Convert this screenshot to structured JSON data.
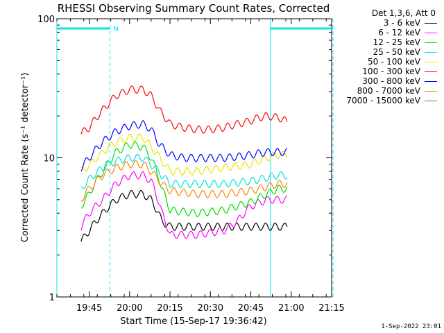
{
  "chart_data": {
    "type": "line",
    "title": "RHESSI Observing Summary Count Rates, Corrected",
    "xlabel": "Start Time (15-Sep-17 19:36:42)",
    "ylabel": "Corrected Count Rate (s⁻¹ detector⁻¹)",
    "y_scale": "log",
    "ylim": [
      1,
      100
    ],
    "y_ticks": [
      "1",
      "10",
      "100"
    ],
    "x_range_minutes": [
      -12,
      90
    ],
    "x_ticks": [
      {
        "label": "19:45",
        "t": 0
      },
      {
        "label": "20:00",
        "t": 15
      },
      {
        "label": "20:15",
        "t": 30
      },
      {
        "label": "20:30",
        "t": 45
      },
      {
        "label": "20:45",
        "t": 60
      },
      {
        "label": "21:00",
        "t": 75
      },
      {
        "label": "21:15",
        "t": 90
      }
    ],
    "legend_title": "Det 1,3,6, Att 0",
    "legend_placement": "right, outside plot",
    "series": [
      {
        "name": "3 - 6 keV",
        "color": "#000000",
        "x": [
          -3,
          0,
          5,
          10,
          15,
          20,
          23,
          27,
          30,
          40,
          50,
          60,
          66,
          70,
          72,
          73.5
        ],
        "y": [
          2.5,
          3.0,
          4.0,
          5.0,
          5.5,
          5.5,
          5.0,
          3.5,
          3.2,
          3.2,
          3.2,
          3.2,
          3.2,
          3.2,
          3.2,
          3.2
        ]
      },
      {
        "name": "6 - 12 keV",
        "color": "#ff00ff",
        "x": [
          -3,
          0,
          5,
          10,
          15,
          20,
          23,
          27,
          30,
          40,
          50,
          55,
          60,
          66,
          70,
          72,
          73.5
        ],
        "y": [
          3.2,
          4.0,
          5.0,
          6.5,
          7.5,
          7.5,
          6.8,
          4.0,
          2.8,
          2.8,
          3.0,
          3.5,
          4.5,
          5.0,
          5.0,
          5.0,
          5.0
        ]
      },
      {
        "name": "12 - 25 keV",
        "color": "#00dd00",
        "x": [
          -3,
          0,
          5,
          10,
          15,
          20,
          23,
          27,
          30,
          40,
          50,
          60,
          66,
          70,
          72,
          73.5
        ],
        "y": [
          4.5,
          5.5,
          8.0,
          11.0,
          12.5,
          12.0,
          10.0,
          6.0,
          4.2,
          4.0,
          4.2,
          4.8,
          5.5,
          6.0,
          6.0,
          6.0
        ]
      },
      {
        "name": "25 - 50 keV",
        "color": "#00e0e0",
        "x": [
          -3,
          0,
          5,
          10,
          15,
          20,
          23,
          27,
          30,
          40,
          50,
          60,
          66,
          70,
          72,
          73.5
        ],
        "y": [
          6.0,
          7.0,
          8.5,
          9.5,
          10.0,
          10.0,
          9.0,
          7.5,
          6.5,
          6.5,
          6.5,
          6.8,
          7.2,
          7.5,
          7.5,
          7.5
        ]
      },
      {
        "name": "50 - 100 keV",
        "color": "#e6e600",
        "x": [
          -3,
          0,
          5,
          10,
          15,
          20,
          23,
          27,
          30,
          40,
          50,
          60,
          66,
          70,
          72,
          73.5
        ],
        "y": [
          8.0,
          8.8,
          11.0,
          13.0,
          14.0,
          14.0,
          12.0,
          9.5,
          8.0,
          8.0,
          8.5,
          9.0,
          10.0,
          10.5,
          10.5,
          10.5
        ]
      },
      {
        "name": "100 - 300 keV",
        "color": "#ff0000",
        "x": [
          -3,
          0,
          5,
          10,
          15,
          20,
          23,
          26,
          30,
          35,
          40,
          45,
          50,
          55,
          60,
          63,
          66,
          70,
          72,
          73.5
        ],
        "y": [
          15.0,
          16.5,
          22.0,
          28.0,
          31.0,
          31.0,
          28.0,
          22.0,
          17.5,
          16.5,
          16.0,
          16.0,
          16.5,
          17.5,
          18.5,
          19.5,
          20.0,
          19.5,
          19.0,
          18.0
        ]
      },
      {
        "name": "300 - 800 keV",
        "color": "#0000ff",
        "x": [
          -3,
          0,
          5,
          10,
          15,
          20,
          23,
          26,
          30,
          35,
          40,
          45,
          50,
          55,
          60,
          63,
          66,
          70,
          72,
          73.5
        ],
        "y": [
          8.5,
          10.0,
          13.0,
          15.5,
          17.0,
          17.5,
          16.0,
          12.5,
          10.5,
          10.0,
          10.0,
          10.0,
          10.0,
          10.2,
          10.5,
          10.8,
          11.0,
          11.0,
          11.0,
          11.0
        ]
      },
      {
        "name": "800 - 7000 keV",
        "color": "#ff8000",
        "x": [
          -3,
          0,
          5,
          10,
          15,
          20,
          23,
          27,
          30,
          40,
          50,
          60,
          66,
          70,
          72,
          73.5
        ],
        "y": [
          5.0,
          6.0,
          7.5,
          8.5,
          9.0,
          9.0,
          8.0,
          6.5,
          5.8,
          5.5,
          5.5,
          5.8,
          6.2,
          6.5,
          6.5,
          6.5
        ]
      },
      {
        "name": "7000 - 15000 keV",
        "color": "#808000",
        "x": [],
        "y": []
      }
    ],
    "markers": {
      "cyan_line_color": "#00e5ee",
      "night_bars": [
        {
          "t_start": -12,
          "t_end": 7.7,
          "label": "N"
        },
        {
          "t_start": 67.3,
          "t_end": 90.5,
          "label": ""
        }
      ],
      "solid_lines_t": [
        -12,
        67.3
      ],
      "dashed_lines_t": [
        7.7,
        90.5
      ]
    }
  },
  "footer": {
    "date": "1-Sep-2022 23:01"
  }
}
